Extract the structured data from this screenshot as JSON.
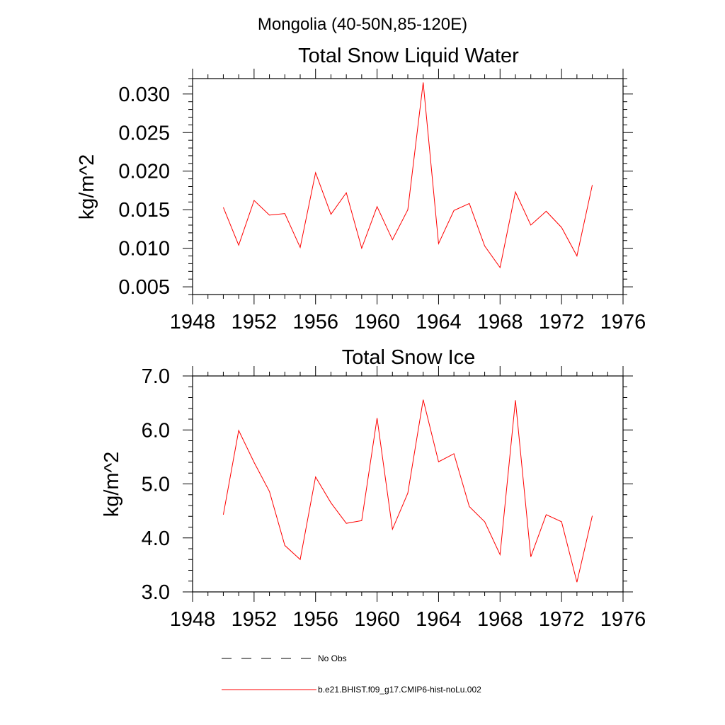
{
  "suptitle": "Mongolia (40-50N,85-120E)",
  "chart_data": [
    {
      "type": "line",
      "title": "Total Snow Liquid Water",
      "ylabel": "kg/m^2",
      "xlabel": "",
      "xlim": [
        1948,
        1976
      ],
      "ylim": [
        0.004,
        0.032
      ],
      "xticks": [
        1948,
        1952,
        1956,
        1960,
        1964,
        1968,
        1972,
        1976
      ],
      "xtick_labels": [
        "1948",
        "1952",
        "1956",
        "1960",
        "1964",
        "1968",
        "1972",
        "1976"
      ],
      "yticks": [
        0.005,
        0.01,
        0.015,
        0.02,
        0.025,
        0.03
      ],
      "ytick_labels": [
        "0.005",
        "0.010",
        "0.015",
        "0.020",
        "0.025",
        "0.030"
      ],
      "x": [
        1950,
        1951,
        1952,
        1953,
        1954,
        1955,
        1956,
        1957,
        1958,
        1959,
        1960,
        1961,
        1962,
        1963,
        1964,
        1965,
        1966,
        1967,
        1968,
        1969,
        1970,
        1971,
        1972,
        1973,
        1974
      ],
      "series": [
        {
          "name": "b.e21.BHIST.f09_g17.CMIP6-hist-noLu.002",
          "color": "#ff0000",
          "values": [
            0.0153,
            0.0104,
            0.0162,
            0.0143,
            0.0145,
            0.0101,
            0.0198,
            0.0144,
            0.0172,
            0.01,
            0.0154,
            0.0111,
            0.015,
            0.0315,
            0.0106,
            0.0149,
            0.0158,
            0.0103,
            0.0075,
            0.0173,
            0.013,
            0.0148,
            0.0127,
            0.009,
            0.0182
          ]
        }
      ],
      "grid": false
    },
    {
      "type": "line",
      "title": "Total Snow Ice",
      "ylabel": "kg/m^2",
      "xlabel": "",
      "xlim": [
        1948,
        1976
      ],
      "ylim": [
        3.0,
        7.0
      ],
      "xticks": [
        1948,
        1952,
        1956,
        1960,
        1964,
        1968,
        1972,
        1976
      ],
      "xtick_labels": [
        "1948",
        "1952",
        "1956",
        "1960",
        "1964",
        "1968",
        "1972",
        "1976"
      ],
      "yticks": [
        3.0,
        4.0,
        5.0,
        6.0,
        7.0
      ],
      "ytick_labels": [
        "3.0",
        "4.0",
        "5.0",
        "6.0",
        "7.0"
      ],
      "x": [
        1950,
        1951,
        1952,
        1953,
        1954,
        1955,
        1956,
        1957,
        1958,
        1959,
        1960,
        1961,
        1962,
        1963,
        1964,
        1965,
        1966,
        1967,
        1968,
        1969,
        1970,
        1971,
        1972,
        1973,
        1974
      ],
      "series": [
        {
          "name": "b.e21.BHIST.f09_g17.CMIP6-hist-noLu.002",
          "color": "#ff0000",
          "values": [
            4.43,
            5.99,
            5.4,
            4.86,
            3.86,
            3.6,
            5.13,
            4.65,
            4.27,
            4.32,
            6.22,
            4.16,
            4.83,
            6.56,
            5.41,
            5.56,
            4.58,
            4.3,
            3.69,
            6.55,
            3.65,
            4.43,
            4.3,
            3.18,
            4.41
          ]
        }
      ],
      "grid": false
    }
  ],
  "legend": {
    "placement": "bottom",
    "items": [
      {
        "label": "No Obs",
        "style": "dashed",
        "color": "#000000"
      },
      {
        "label": "b.e21.BHIST.f09_g17.CMIP6-hist-noLu.002",
        "style": "solid",
        "color": "#ff0000"
      }
    ]
  }
}
